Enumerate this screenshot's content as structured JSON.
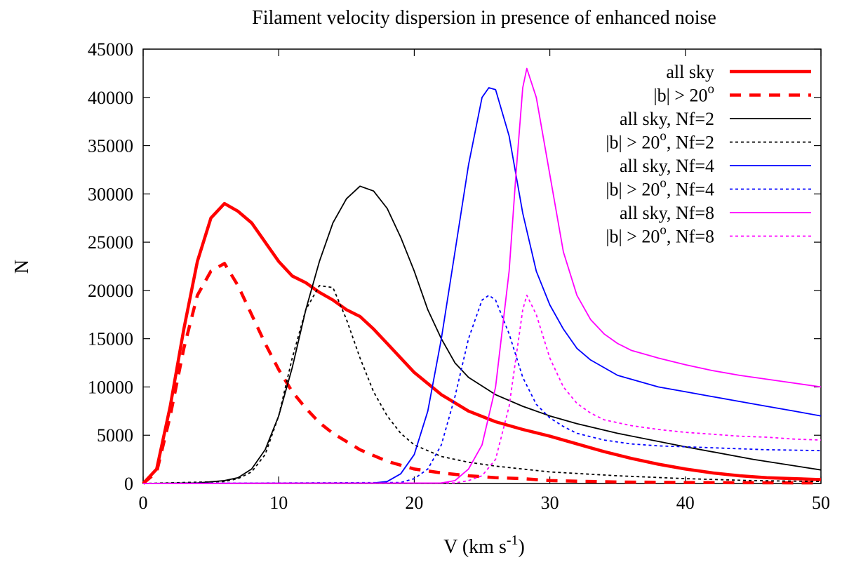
{
  "chart_data": {
    "type": "line",
    "title": "Filament velocity dispersion in presence of enhanced noise",
    "xlabel": "V (km s",
    "xlabel_sup": "-1",
    "xlabel_close": ")",
    "ylabel": "N",
    "xlim": [
      0,
      50
    ],
    "ylim": [
      0,
      45000
    ],
    "xticks": [
      0,
      10,
      20,
      30,
      40,
      50
    ],
    "yticks": [
      0,
      5000,
      10000,
      15000,
      20000,
      25000,
      30000,
      35000,
      40000,
      45000
    ],
    "legend_position": "top-right",
    "series": [
      {
        "name": "all sky",
        "label": [
          "all sky"
        ],
        "color": "#ff0000",
        "style": "solid-thick",
        "x": [
          0,
          1,
          2,
          3,
          4,
          5,
          6,
          7,
          8,
          9,
          10,
          11,
          12,
          13,
          14,
          15,
          16,
          17,
          18,
          19,
          20,
          22,
          24,
          26,
          28,
          30,
          32,
          34,
          36,
          38,
          40,
          42,
          44,
          46,
          48,
          50
        ],
        "values": [
          0,
          1500,
          8000,
          16000,
          23000,
          27500,
          29000,
          28200,
          27000,
          25000,
          23000,
          21500,
          20800,
          19800,
          19000,
          18000,
          17300,
          16000,
          14500,
          13000,
          11500,
          9200,
          7500,
          6400,
          5600,
          4900,
          4100,
          3300,
          2600,
          2000,
          1500,
          1100,
          800,
          600,
          500,
          400
        ]
      },
      {
        "name": "|b| > 20o",
        "label": [
          "|b| > 20",
          "o",
          ""
        ],
        "color": "#ff0000",
        "style": "dashed-thick",
        "x": [
          0,
          1,
          2,
          3,
          4,
          5,
          6,
          7,
          8,
          9,
          10,
          11,
          12,
          13,
          14,
          16,
          18,
          20,
          22,
          24,
          26,
          28,
          30,
          35,
          40,
          45,
          50
        ],
        "values": [
          0,
          1200,
          7000,
          14000,
          19500,
          22000,
          22800,
          20500,
          17500,
          14500,
          11800,
          9500,
          7800,
          6300,
          5200,
          3500,
          2300,
          1500,
          1100,
          800,
          600,
          500,
          300,
          150,
          100,
          80,
          60
        ]
      },
      {
        "name": "all sky, Nf=2",
        "label": [
          "all sky, Nf=2"
        ],
        "color": "#000000",
        "style": "solid",
        "x": [
          0,
          4,
          6,
          7,
          8,
          9,
          10,
          11,
          12,
          13,
          14,
          15,
          16,
          17,
          18,
          19,
          20,
          21,
          22,
          23,
          24,
          26,
          28,
          30,
          32,
          35,
          40,
          45,
          50
        ],
        "values": [
          0,
          50,
          300,
          600,
          1500,
          3500,
          7000,
          12000,
          18000,
          23000,
          27000,
          29500,
          30800,
          30300,
          28500,
          25500,
          22000,
          18000,
          15000,
          12500,
          11000,
          9200,
          8000,
          7000,
          6200,
          5200,
          3800,
          2500,
          1400
        ]
      },
      {
        "name": "|b| > 20o, Nf=2",
        "label": [
          "|b| > 20",
          "o",
          ", Nf=2"
        ],
        "color": "#000000",
        "style": "dotted",
        "x": [
          0,
          6,
          7,
          8,
          9,
          10,
          11,
          12,
          13,
          14,
          15,
          16,
          17,
          18,
          19,
          20,
          22,
          24,
          26,
          28,
          30,
          35,
          40,
          45,
          50
        ],
        "values": [
          0,
          200,
          500,
          1200,
          3000,
          7000,
          13000,
          18000,
          20500,
          20300,
          17000,
          13000,
          9500,
          7000,
          5200,
          4000,
          2800,
          2200,
          1800,
          1500,
          1200,
          800,
          500,
          300,
          200
        ]
      },
      {
        "name": "all sky, Nf=4",
        "label": [
          "all sky, Nf=4"
        ],
        "color": "#0000ff",
        "style": "solid",
        "x": [
          0,
          17,
          18,
          19,
          20,
          21,
          22,
          23,
          24,
          25,
          25.5,
          26,
          27,
          28,
          29,
          30,
          31,
          32,
          33,
          34,
          35,
          36,
          38,
          40,
          42,
          44,
          46,
          48,
          50
        ],
        "values": [
          0,
          50,
          200,
          1000,
          3000,
          7500,
          15000,
          24000,
          33000,
          40000,
          41000,
          40800,
          36000,
          28000,
          22000,
          18500,
          16000,
          14000,
          12800,
          12000,
          11200,
          10800,
          10000,
          9500,
          9000,
          8500,
          8000,
          7500,
          7000
        ]
      },
      {
        "name": "|b| > 20o, Nf=4",
        "label": [
          "|b| > 20",
          "o",
          ", Nf=4"
        ],
        "color": "#0000ff",
        "style": "dotted",
        "x": [
          0,
          19,
          20,
          21,
          22,
          23,
          24,
          25,
          25.5,
          26,
          27,
          28,
          29,
          30,
          31,
          32,
          34,
          36,
          38,
          40,
          42,
          44,
          46,
          48,
          50
        ],
        "values": [
          0,
          100,
          500,
          1500,
          4000,
          9000,
          15000,
          19000,
          19500,
          19000,
          15500,
          11000,
          8200,
          6800,
          5900,
          5200,
          4500,
          4100,
          3900,
          3800,
          3700,
          3600,
          3500,
          3450,
          3400
        ]
      },
      {
        "name": "all sky, Nf=8",
        "label": [
          "all sky, Nf=8"
        ],
        "color": "#ff00ff",
        "style": "solid",
        "x": [
          0,
          22,
          23,
          24,
          25,
          26,
          27,
          27.5,
          28,
          28.3,
          29,
          30,
          31,
          32,
          33,
          34,
          35,
          36,
          38,
          40,
          42,
          44,
          46,
          48,
          50
        ],
        "values": [
          0,
          50,
          300,
          1500,
          4000,
          10000,
          22000,
          32000,
          41000,
          43000,
          40000,
          32000,
          24000,
          19500,
          17000,
          15500,
          14500,
          13800,
          13000,
          12300,
          11700,
          11200,
          10800,
          10400,
          10000
        ]
      },
      {
        "name": "|b| > 20o, Nf=8",
        "label": [
          "|b| > 20",
          "o",
          ", Nf=8"
        ],
        "color": "#ff00ff",
        "style": "dotted",
        "x": [
          0,
          23,
          24,
          25,
          26,
          27,
          27.5,
          28,
          28.3,
          29,
          30,
          31,
          32,
          33,
          34,
          36,
          38,
          40,
          42,
          44,
          46,
          48,
          50
        ],
        "values": [
          0,
          50,
          300,
          800,
          2500,
          8000,
          13000,
          18000,
          19500,
          17500,
          13000,
          10000,
          8300,
          7300,
          6600,
          6000,
          5600,
          5300,
          5100,
          4900,
          4800,
          4600,
          4500
        ]
      }
    ]
  }
}
